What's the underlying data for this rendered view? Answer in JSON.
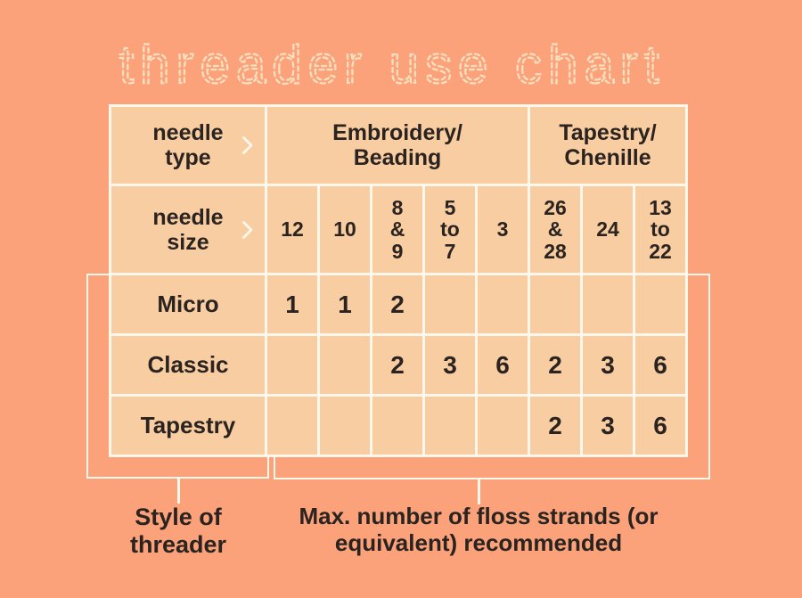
{
  "title": "threader use chart",
  "colors": {
    "background": "#FBA27B",
    "cell_fill": "#F9CDA2",
    "grid_line": "#FEF7EC",
    "text": "#2A2320",
    "title_dash": "#F8DFBE"
  },
  "table": {
    "needle_type_label": "needle\ntype",
    "needle_size_label": "needle\nsize",
    "group_headers": {
      "embroidery": "Embroidery/\nBeading",
      "tapestry": "Tapestry/\nChenille"
    },
    "size_columns": [
      "12",
      "10",
      "8\n&\n9",
      "5\nto\n7",
      "3",
      "26\n&\n28",
      "24",
      "13\nto\n22"
    ],
    "rows": [
      {
        "label": "Micro",
        "values": [
          "1",
          "1",
          "2",
          "",
          "",
          "",
          "",
          ""
        ]
      },
      {
        "label": "Classic",
        "values": [
          "",
          "",
          "2",
          "3",
          "6",
          "2",
          "3",
          "6"
        ]
      },
      {
        "label": "Tapestry",
        "values": [
          "",
          "",
          "",
          "",
          "",
          "2",
          "3",
          "6"
        ]
      }
    ]
  },
  "legend": {
    "style_of_threader": "Style of\nthreader",
    "max_floss": "Max. number of floss strands (or\nequivalent) recommended"
  },
  "chart_data": {
    "type": "table",
    "title": "threader use chart",
    "column_groups": [
      {
        "label": "Embroidery/Beading",
        "span": 5
      },
      {
        "label": "Tapestry/Chenille",
        "span": 3
      }
    ],
    "row_axis_label": "needle type",
    "column_axis_label": "needle size",
    "columns": [
      "12",
      "10",
      "8 & 9",
      "5 to 7",
      "3",
      "26 & 28",
      "24",
      "13 to 22"
    ],
    "rows": [
      {
        "label": "Micro",
        "values": [
          1,
          1,
          2,
          null,
          null,
          null,
          null,
          null
        ]
      },
      {
        "label": "Classic",
        "values": [
          null,
          null,
          2,
          3,
          6,
          2,
          3,
          6
        ]
      },
      {
        "label": "Tapestry",
        "values": [
          null,
          null,
          null,
          null,
          null,
          2,
          3,
          6
        ]
      }
    ],
    "annotations": [
      "Style of threader",
      "Max. number of floss strands (or equivalent) recommended"
    ]
  }
}
